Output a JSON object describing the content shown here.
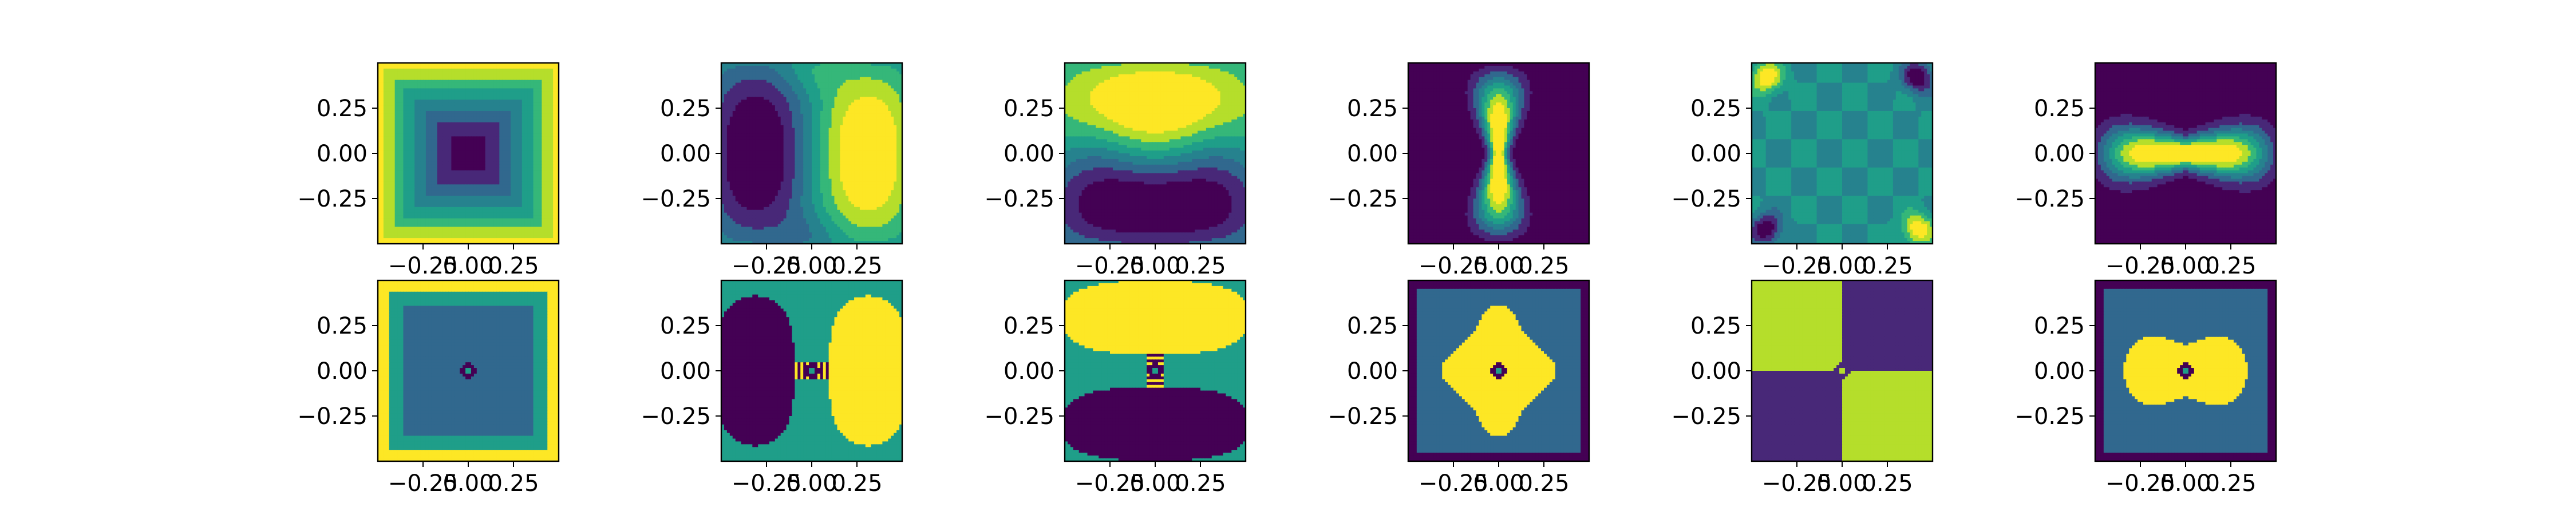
{
  "figure": {
    "rows": 2,
    "cols": 6
  },
  "colors": {
    "viridis": [
      "#440154",
      "#482878",
      "#3e4989",
      "#31688e",
      "#26828e",
      "#1f9e89",
      "#35b779",
      "#6ece58",
      "#b5de2b",
      "#fde725"
    ]
  },
  "chart_data": {
    "type": "heatmap",
    "title": "",
    "xlabel": "",
    "ylabel": "",
    "xlim": [
      -0.5,
      0.5
    ],
    "ylim": [
      -0.5,
      0.5
    ],
    "x_ticks": [
      -0.25,
      0.0,
      0.25
    ],
    "y_ticks": [
      0.25,
      0.0,
      -0.25
    ],
    "x_tick_labels": [
      "−0.25",
      "0.00",
      "0.25"
    ],
    "y_tick_labels": [
      "0.25",
      "0.00",
      "−0.25"
    ],
    "grid": false,
    "panels": [
      {
        "row": 0,
        "col": 0,
        "pattern": "rect_bowl",
        "levels": 8,
        "background_level": 0.9,
        "description_levels": [
          0.9,
          0.8,
          0.65,
          0.5,
          0.35,
          0.2,
          0.05
        ]
      },
      {
        "row": 0,
        "col": 1,
        "pattern": "horizontal_dipole",
        "levels": 8,
        "low_side": "left",
        "high_side": "right"
      },
      {
        "row": 0,
        "col": 2,
        "pattern": "vertical_dipole",
        "levels": 8,
        "low_side": "bottom",
        "high_side": "top"
      },
      {
        "row": 0,
        "col": 3,
        "pattern": "hourglass_peak",
        "levels": 8,
        "orientation": "vertical"
      },
      {
        "row": 0,
        "col": 4,
        "pattern": "corner_saddle",
        "levels": 8
      },
      {
        "row": 0,
        "col": 5,
        "pattern": "bowtie_peak",
        "levels": 8,
        "orientation": "horizontal"
      },
      {
        "row": 1,
        "col": 0,
        "pattern": "three_level_square",
        "levels": 3,
        "center_ring": true
      },
      {
        "row": 1,
        "col": 1,
        "pattern": "three_level_dipole_h",
        "levels": 3,
        "center_ring": true
      },
      {
        "row": 1,
        "col": 2,
        "pattern": "three_level_dipole_v",
        "levels": 3,
        "center_ring": true
      },
      {
        "row": 1,
        "col": 3,
        "pattern": "three_level_blob",
        "levels": 3,
        "center_ring": true
      },
      {
        "row": 1,
        "col": 4,
        "pattern": "quadrant_checker",
        "levels": 2,
        "center_ring": true
      },
      {
        "row": 1,
        "col": 5,
        "pattern": "three_level_bowtie",
        "levels": 3,
        "center_ring": true
      }
    ]
  }
}
